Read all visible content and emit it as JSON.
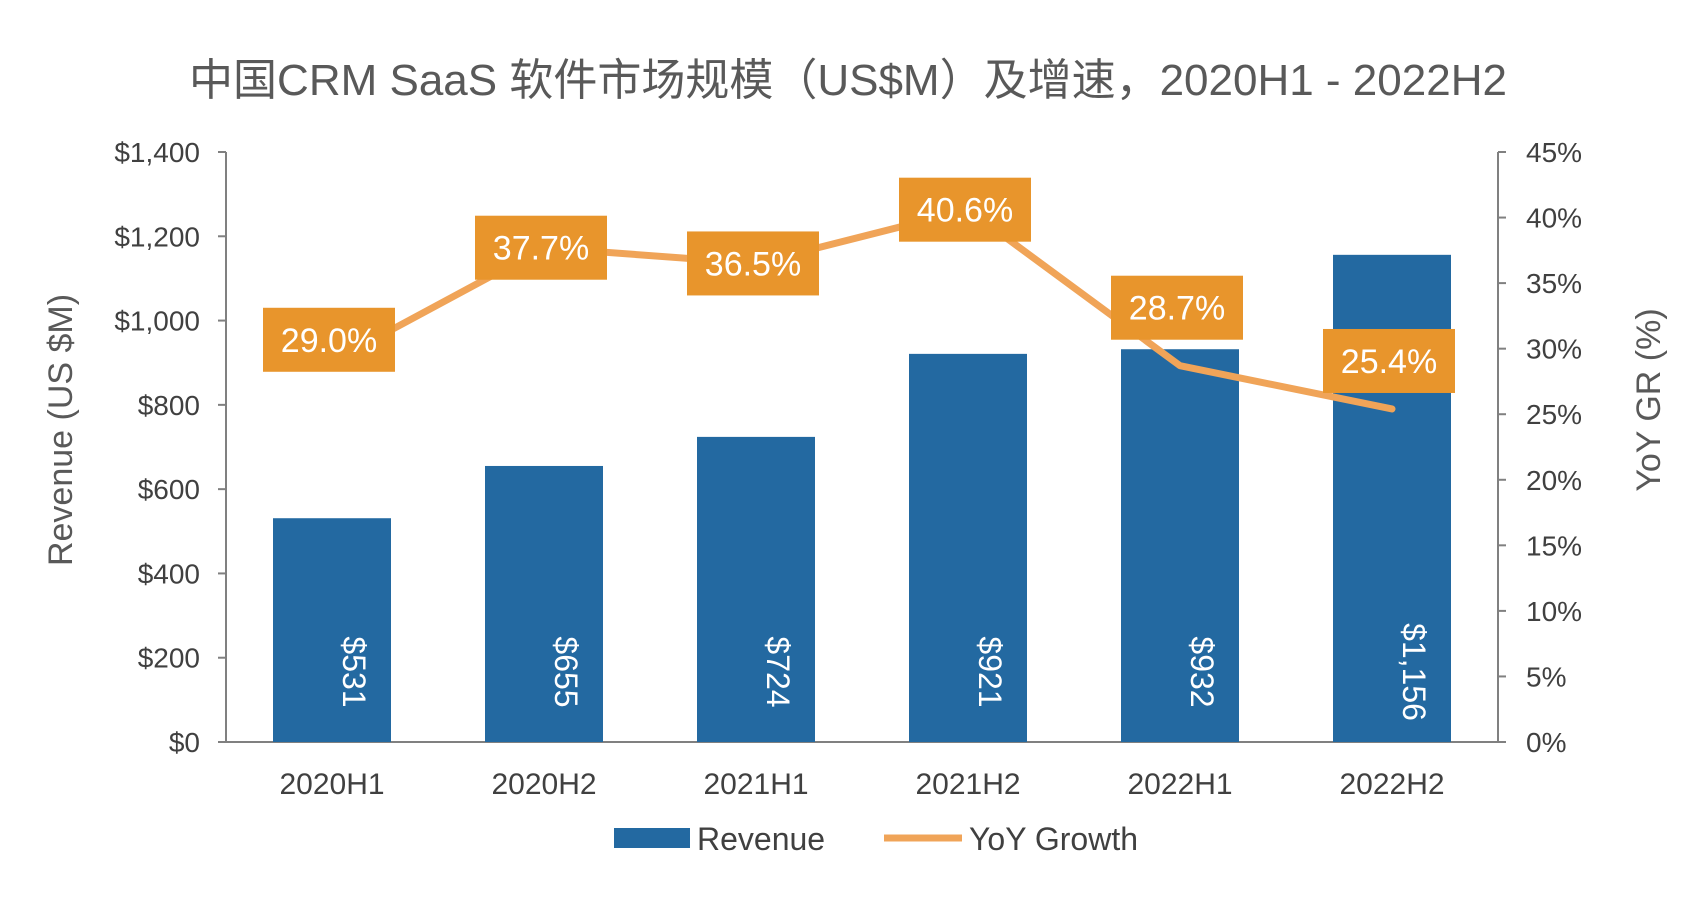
{
  "chart_data": {
    "type": "bar",
    "title": "中国CRM SaaS 软件市场规模（US$M）及增速，2020H1 - 2022H2",
    "categories": [
      "2020H1",
      "2020H2",
      "2021H1",
      "2021H2",
      "2022H1",
      "2022H2"
    ],
    "series": [
      {
        "name": "Revenue",
        "type": "bar",
        "axis": "left",
        "values": [
          531,
          655,
          724,
          921,
          932,
          1156
        ],
        "labels": [
          "$531",
          "$655",
          "$724",
          "$921",
          "$932",
          "$1,156"
        ]
      },
      {
        "name": "YoY Growth",
        "type": "line",
        "axis": "right",
        "values": [
          29.0,
          37.7,
          36.5,
          40.6,
          28.7,
          25.4
        ],
        "labels": [
          "29.0%",
          "37.7%",
          "36.5%",
          "40.6%",
          "28.7%",
          "25.4%"
        ]
      }
    ],
    "ylabel": "Revenue (US $M)",
    "ylabel_right": "YoY GR (%)",
    "ylim": [
      0,
      1400
    ],
    "ylim_right": [
      0,
      45
    ],
    "yticks": [
      "$0",
      "$200",
      "$400",
      "$600",
      "$800",
      "$1,000",
      "$1,200",
      "$1,400"
    ],
    "yticks_right": [
      "0%",
      "5%",
      "10%",
      "15%",
      "20%",
      "25%",
      "30%",
      "35%",
      "40%",
      "45%"
    ],
    "grid": false,
    "legend": "bottom",
    "colors": {
      "bar": "#2369A1",
      "line": "#F0A458",
      "label_box": "#E8952C",
      "axis": "#808080"
    }
  }
}
